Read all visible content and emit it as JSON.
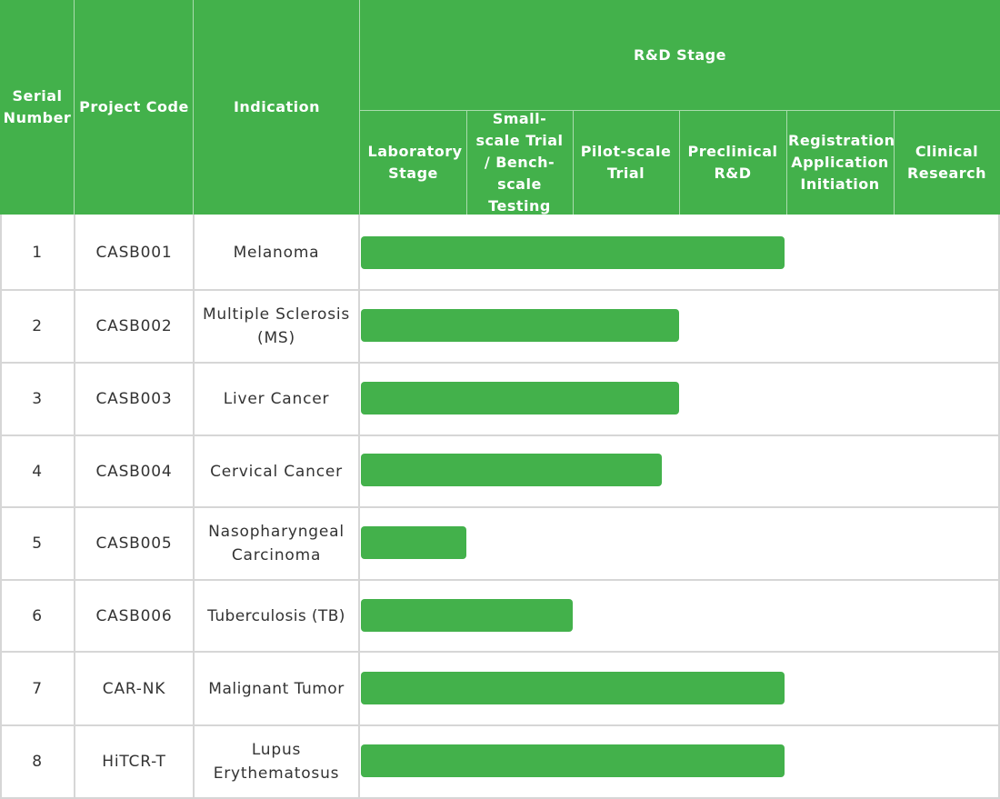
{
  "header": {
    "serial_number": "Serial Number",
    "project_code": "Project Code",
    "indication": "Indication",
    "rd_stage": "R&D Stage"
  },
  "stages": [
    "Laboratory Stage",
    "Small-scale Trial / Bench-scale Testing",
    "Pilot-scale Trial",
    "Preclinical R&D",
    "Registration Application Initiation",
    "Clinical Research"
  ],
  "rows": [
    {
      "serial": "1",
      "code": "CASB001",
      "indication": "Melanoma",
      "progress_stage_fraction": 4.0
    },
    {
      "serial": "2",
      "code": "CASB002",
      "indication": "Multiple Sclerosis (MS)",
      "progress_stage_fraction": 3.0
    },
    {
      "serial": "3",
      "code": "CASB003",
      "indication": "Liver Cancer",
      "progress_stage_fraction": 3.0
    },
    {
      "serial": "4",
      "code": "CASB004",
      "indication": "Cervical Cancer",
      "progress_stage_fraction": 2.83
    },
    {
      "serial": "5",
      "code": "CASB005",
      "indication": "Nasopharyngeal Carcinoma",
      "progress_stage_fraction": 1.0
    },
    {
      "serial": "6",
      "code": "CASB006",
      "indication": "Tuberculosis (TB)",
      "progress_stage_fraction": 2.0
    },
    {
      "serial": "7",
      "code": "CAR-NK",
      "indication": "Malignant Tumor",
      "progress_stage_fraction": 4.0
    },
    {
      "serial": "8",
      "code": "HiTCR-T",
      "indication": "Lupus Erythematosus",
      "progress_stage_fraction": 4.0
    }
  ],
  "colors": {
    "accent": "#43b14b",
    "grid": "#d6d6d6",
    "text": "#333333"
  }
}
